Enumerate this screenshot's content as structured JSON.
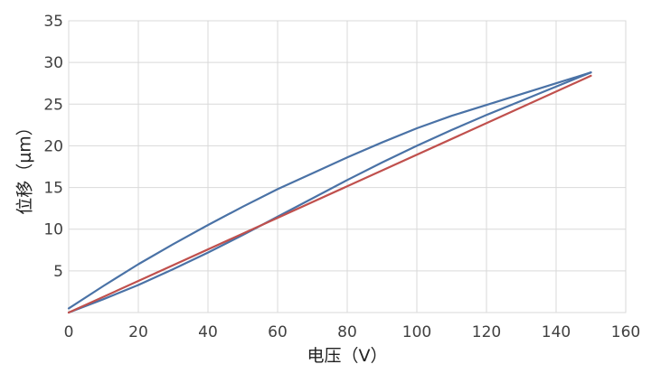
{
  "chart_data": {
    "type": "line",
    "title": "",
    "xlabel": "电压（V）",
    "ylabel": "位移（μm）",
    "xlim": [
      0,
      160
    ],
    "ylim": [
      0,
      35
    ],
    "x_ticks": [
      0,
      20,
      40,
      60,
      80,
      100,
      120,
      140,
      160
    ],
    "y_ticks": [
      5,
      10,
      15,
      20,
      25,
      30,
      35
    ],
    "grid": true,
    "legend": "none",
    "series": [
      {
        "color": "#4a72a6",
        "x": [
          0,
          10,
          20,
          30,
          40,
          50,
          60,
          70,
          80,
          90,
          100,
          110,
          120,
          130,
          140,
          150
        ],
        "y": [
          0.0,
          1.6,
          3.3,
          5.2,
          7.2,
          9.3,
          11.5,
          13.7,
          15.9,
          18.0,
          20.0,
          21.9,
          23.7,
          25.4,
          27.1,
          28.8
        ]
      },
      {
        "color": "#4a72a6",
        "x": [
          150,
          140,
          130,
          120,
          110,
          100,
          90,
          80,
          70,
          60,
          50,
          40,
          30,
          20,
          10,
          0
        ],
        "y": [
          28.8,
          27.5,
          26.2,
          24.9,
          23.6,
          22.1,
          20.4,
          18.6,
          16.7,
          14.8,
          12.7,
          10.5,
          8.2,
          5.8,
          3.2,
          0.5
        ]
      },
      {
        "color": "#c0504d",
        "x": [
          0,
          150
        ],
        "y": [
          0,
          28.4
        ]
      }
    ]
  }
}
